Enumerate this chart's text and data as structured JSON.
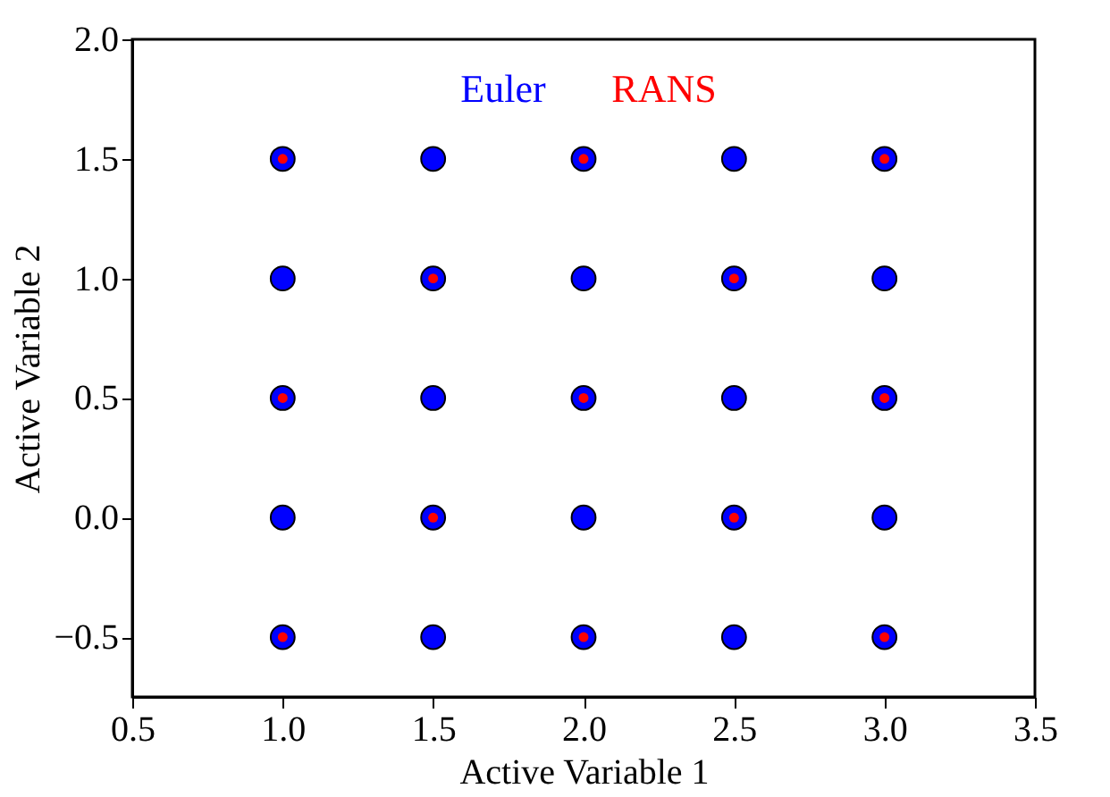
{
  "chart_data": {
    "type": "scatter",
    "xlabel": "Active Variable 1",
    "ylabel": "Active Variable 2",
    "xlim": [
      0.5,
      3.5
    ],
    "xticks": [
      {
        "value": 0.5,
        "label": "0.5"
      },
      {
        "value": 1,
        "label": "1.0"
      },
      {
        "value": 1.5,
        "label": "1.5"
      },
      {
        "value": 2,
        "label": "2.0"
      },
      {
        "value": 2.5,
        "label": "2.5"
      },
      {
        "value": 3,
        "label": "3.0"
      },
      {
        "value": 3.5,
        "label": "3.5"
      }
    ],
    "ylim": [
      -0.75,
      2.0
    ],
    "yticks": [
      {
        "value": -0.5,
        "label": "−0.5"
      },
      {
        "value": 0,
        "label": "0.0"
      },
      {
        "value": 0.5,
        "label": "0.5"
      },
      {
        "value": 1,
        "label": "1.0"
      },
      {
        "value": 1.5,
        "label": "1.5"
      },
      {
        "value": 2,
        "label": "2.0"
      }
    ],
    "grid": false,
    "legend": "top",
    "marker": "circle",
    "series": [
      {
        "name": "Euler",
        "color": "#0000ff",
        "x": [
          1.0,
          1.5,
          2.0,
          2.5,
          3.0,
          1.0,
          1.5,
          2.0,
          2.5,
          3.0,
          1.0,
          1.5,
          2.0,
          2.5,
          3.0,
          1.0,
          1.5,
          2.0,
          2.5,
          3.0,
          1.0,
          1.5,
          2.0,
          2.5,
          3.0
        ],
        "values": [
          1.5,
          1.5,
          1.5,
          1.5,
          1.5,
          1.0,
          1.0,
          1.0,
          1.0,
          1.0,
          0.5,
          0.5,
          0.5,
          0.5,
          0.5,
          0.0,
          0.0,
          0.0,
          0.0,
          0.0,
          -0.5,
          -0.5,
          -0.5,
          -0.5,
          -0.5
        ]
      },
      {
        "name": "RANS",
        "color": "#ff0000",
        "x": [
          1.0,
          2.0,
          3.0,
          1.5,
          2.5,
          1.0,
          2.0,
          3.0,
          1.5,
          2.5,
          1.0,
          2.0,
          3.0
        ],
        "values": [
          1.5,
          1.5,
          1.5,
          1.0,
          1.0,
          0.5,
          0.5,
          0.5,
          0.0,
          0.0,
          -0.5,
          -0.5,
          -0.5
        ]
      }
    ]
  }
}
